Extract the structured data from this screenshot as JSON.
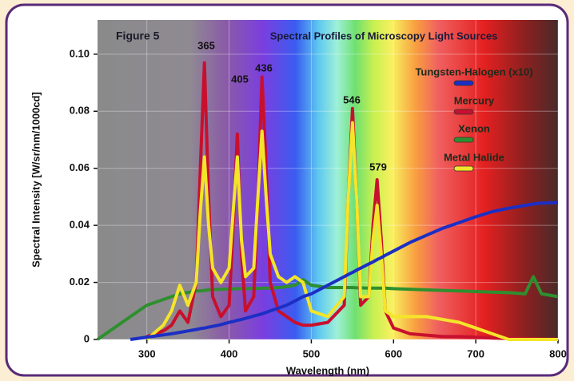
{
  "chart_data": {
    "type": "line",
    "title": "Spectral Profiles of Microscopy Light Sources",
    "figure_label": "Figure 5",
    "x_label": "Wavelength (nm)",
    "y_label": "Spectral Intensity [W/sr/nm/1000cd]",
    "annotations": [
      "365",
      "405",
      "436",
      "546",
      "579"
    ],
    "x": [
      240,
      260,
      280,
      300,
      320,
      330,
      340,
      350,
      360,
      365,
      370,
      375,
      380,
      390,
      400,
      405,
      410,
      415,
      420,
      430,
      435,
      440,
      445,
      450,
      460,
      470,
      480,
      490,
      500,
      520,
      540,
      545,
      550,
      555,
      560,
      570,
      575,
      580,
      585,
      590,
      600,
      620,
      640,
      660,
      680,
      700,
      720,
      740,
      760,
      770,
      780,
      800
    ],
    "series": [
      {
        "name": "Tungsten-Halogen (x10)",
        "color": "#1c2fc4",
        "values": [
          null,
          null,
          0,
          0.0008,
          0.0016,
          0.002,
          0.0025,
          0.003,
          0.0035,
          0.0038,
          0.004,
          0.0043,
          0.0046,
          0.0052,
          0.006,
          0.0063,
          0.0067,
          0.007,
          0.0074,
          0.0082,
          0.0086,
          0.009,
          0.0095,
          0.01,
          0.011,
          0.012,
          0.0135,
          0.015,
          0.016,
          0.019,
          0.022,
          0.0228,
          0.0235,
          0.0243,
          0.025,
          0.0265,
          0.0272,
          0.028,
          0.0287,
          0.0295,
          0.031,
          0.034,
          0.0365,
          0.039,
          0.041,
          0.043,
          0.0448,
          0.046,
          0.047,
          0.0475,
          0.0478,
          0.048
        ]
      },
      {
        "name": "Mercury",
        "color": "#c8102e",
        "values": [
          null,
          null,
          null,
          0.001,
          0.003,
          0.005,
          0.01,
          0.006,
          0.02,
          0.06,
          0.097,
          0.05,
          0.015,
          0.008,
          0.012,
          0.04,
          0.072,
          0.03,
          0.01,
          0.015,
          0.05,
          0.092,
          0.06,
          0.02,
          0.01,
          0.008,
          0.006,
          0.005,
          0.005,
          0.006,
          0.012,
          0.05,
          0.081,
          0.05,
          0.012,
          0.015,
          0.04,
          0.056,
          0.035,
          0.01,
          0.004,
          0.002,
          0.0015,
          0.001,
          0.001,
          0.0008,
          0.0005,
          0.0003,
          0.0002,
          0.0002,
          0.0001,
          0.0001
        ]
      },
      {
        "name": "Xenon",
        "color": "#2f8f2f",
        "values": [
          0,
          0.004,
          0.008,
          0.012,
          0.014,
          0.015,
          0.016,
          0.0165,
          0.017,
          0.017,
          0.0172,
          0.0174,
          0.0175,
          0.0176,
          0.0177,
          0.0177,
          0.0178,
          0.0178,
          0.0178,
          0.0179,
          0.0179,
          0.018,
          0.018,
          0.018,
          0.0182,
          0.0185,
          0.019,
          0.021,
          0.019,
          0.0182,
          0.0182,
          0.0182,
          0.0182,
          0.0181,
          0.0181,
          0.018,
          0.018,
          0.018,
          0.018,
          0.018,
          0.0178,
          0.0176,
          0.0174,
          0.0172,
          0.017,
          0.0168,
          0.0166,
          0.0164,
          0.016,
          0.022,
          0.016,
          0.015
        ]
      },
      {
        "name": "Metal Halide",
        "color": "#f4e52a",
        "values": [
          null,
          null,
          null,
          0,
          0.005,
          0.01,
          0.019,
          0.012,
          0.02,
          0.045,
          0.064,
          0.04,
          0.025,
          0.02,
          0.025,
          0.045,
          0.064,
          0.035,
          0.022,
          0.025,
          0.05,
          0.073,
          0.05,
          0.03,
          0.022,
          0.02,
          0.022,
          0.02,
          0.01,
          0.008,
          0.015,
          0.05,
          0.076,
          0.05,
          0.015,
          0.015,
          0.035,
          0.047,
          0.03,
          0.01,
          0.008,
          0.008,
          0.008,
          0.007,
          0.006,
          0.004,
          0.002,
          0,
          0,
          0,
          0,
          0
        ]
      }
    ],
    "xlim": [
      240,
      800
    ],
    "ylim": [
      0,
      0.112
    ],
    "xticks": [
      300,
      400,
      500,
      600,
      700,
      800
    ],
    "yticks": [
      0,
      0.02,
      0.04,
      0.06,
      0.08,
      {
        "value": 0.1,
        "label": "0.10"
      }
    ],
    "grid": true
  }
}
